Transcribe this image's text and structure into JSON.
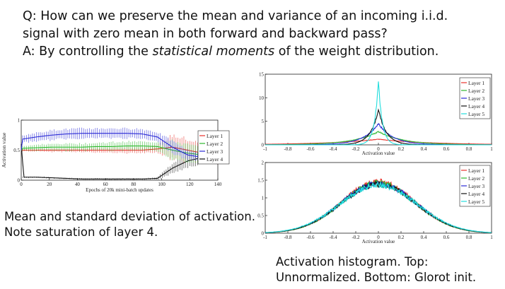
{
  "header": {
    "question": "Q: How can we preserve the mean and variance of an incoming i.i.d. signal with zero mean in both forward and backward pass?",
    "question_line1": "Q: How can we preserve the mean and variance of an incoming i.i.d.",
    "question_line2": "signal with zero mean in both forward and backward pass?",
    "answer_prefix": "A: By controlling the ",
    "answer_emph": "statistical moments",
    "answer_suffix": " of the weight distribution."
  },
  "captions": {
    "left_line1": "Mean and standard deviation of activation.",
    "left_line2": "Note saturation of layer 4.",
    "right_line1": "Activation histogram.  Top:",
    "right_line2": "Unnormalized.  Bottom:  Glorot init."
  },
  "colors": {
    "layer1": "#e8302a",
    "layer2": "#2fb82f",
    "layer3": "#2b2bd6",
    "layer4": "#111111",
    "layer5": "#22dddd"
  },
  "chart_data": [
    {
      "type": "line",
      "title": "",
      "xlabel": "Epochs of 20k mini-batch updates",
      "ylabel": "Activation value",
      "xlim": [
        0,
        140
      ],
      "ylim": [
        0,
        1
      ],
      "x_ticks": [
        "0",
        "20",
        "40",
        "60",
        "80",
        "100",
        "120",
        "140"
      ],
      "y_ticks": [
        "0",
        "0.5",
        "1"
      ],
      "legend": [
        "Layer 1",
        "Layer 2",
        "Layer 3",
        "Layer 4"
      ],
      "series": [
        {
          "name": "Layer 1",
          "mean": [
            0.5,
            0.5,
            0.5,
            0.5,
            0.5,
            0.5,
            0.5,
            0.5,
            0.5,
            0.52,
            0.55,
            0.5,
            0.45,
            0.4
          ],
          "std": [
            0.02,
            0.02,
            0.03,
            0.03,
            0.03,
            0.04,
            0.04,
            0.05,
            0.05,
            0.06,
            0.2,
            0.18,
            0.15,
            0.12
          ]
        },
        {
          "name": "Layer 2",
          "mean": [
            0.53,
            0.54,
            0.55,
            0.55,
            0.55,
            0.56,
            0.56,
            0.57,
            0.57,
            0.56,
            0.5,
            0.45,
            0.42,
            0.4
          ],
          "std": [
            0.04,
            0.05,
            0.05,
            0.06,
            0.06,
            0.06,
            0.07,
            0.07,
            0.07,
            0.08,
            0.15,
            0.14,
            0.12,
            0.1
          ]
        },
        {
          "name": "Layer 3",
          "mean": [
            0.68,
            0.72,
            0.75,
            0.77,
            0.78,
            0.78,
            0.78,
            0.78,
            0.77,
            0.72,
            0.55,
            0.42,
            0.38,
            0.36
          ],
          "std": [
            0.06,
            0.07,
            0.08,
            0.08,
            0.08,
            0.08,
            0.08,
            0.08,
            0.08,
            0.08,
            0.1,
            0.08,
            0.07,
            0.06
          ]
        },
        {
          "name": "Layer 4",
          "mean": [
            0.05,
            0.05,
            0.04,
            0.03,
            0.02,
            0.02,
            0.02,
            0.02,
            0.02,
            0.03,
            0.2,
            0.32,
            0.38,
            0.4
          ],
          "std": [
            0.01,
            0.01,
            0.01,
            0.01,
            0.01,
            0.01,
            0.01,
            0.01,
            0.01,
            0.02,
            0.08,
            0.1,
            0.1,
            0.08
          ]
        }
      ]
    },
    {
      "type": "line",
      "title": "Unnormalized",
      "xlabel": "Activation value",
      "ylabel": "",
      "xlim": [
        -1,
        1
      ],
      "ylim": [
        0,
        15
      ],
      "x_ticks": [
        "-1",
        "-0.8",
        "-0.6",
        "-0.4",
        "-0.2",
        "0",
        "0.2",
        "0.4",
        "0.6",
        "0.8",
        "1"
      ],
      "y_ticks": [
        "0",
        "5",
        "10",
        "15"
      ],
      "legend": [
        "Layer 1",
        "Layer 2",
        "Layer 3",
        "Layer 4",
        "Layer 5"
      ],
      "series": [
        {
          "name": "Layer 1",
          "peak": 1.2,
          "width": 0.45
        },
        {
          "name": "Layer 2",
          "peak": 2.8,
          "width": 0.22
        },
        {
          "name": "Layer 3",
          "peak": 4.5,
          "width": 0.13
        },
        {
          "name": "Layer 4",
          "peak": 7.5,
          "width": 0.07
        },
        {
          "name": "Layer 5",
          "peak": 13.5,
          "width": 0.035
        }
      ]
    },
    {
      "type": "line",
      "title": "Glorot init",
      "xlabel": "Activation value",
      "ylabel": "",
      "xlim": [
        -1,
        1
      ],
      "ylim": [
        0,
        2
      ],
      "x_ticks": [
        "-1",
        "-0.8",
        "-0.6",
        "-0.4",
        "-0.2",
        "0",
        "0.2",
        "0.4",
        "0.6",
        "0.8",
        "1"
      ],
      "y_ticks": [
        "0",
        "0.5",
        "1",
        "1.5",
        "2"
      ],
      "legend": [
        "Layer 1",
        "Layer 2",
        "Layer 3",
        "Layer 4",
        "Layer 5"
      ],
      "series": [
        {
          "name": "Layer 1",
          "peak": 1.45,
          "width": 0.42
        },
        {
          "name": "Layer 2",
          "peak": 1.42,
          "width": 0.42
        },
        {
          "name": "Layer 3",
          "peak": 1.4,
          "width": 0.43
        },
        {
          "name": "Layer 4",
          "peak": 1.38,
          "width": 0.43
        },
        {
          "name": "Layer 5",
          "peak": 1.36,
          "width": 0.44
        }
      ]
    }
  ]
}
